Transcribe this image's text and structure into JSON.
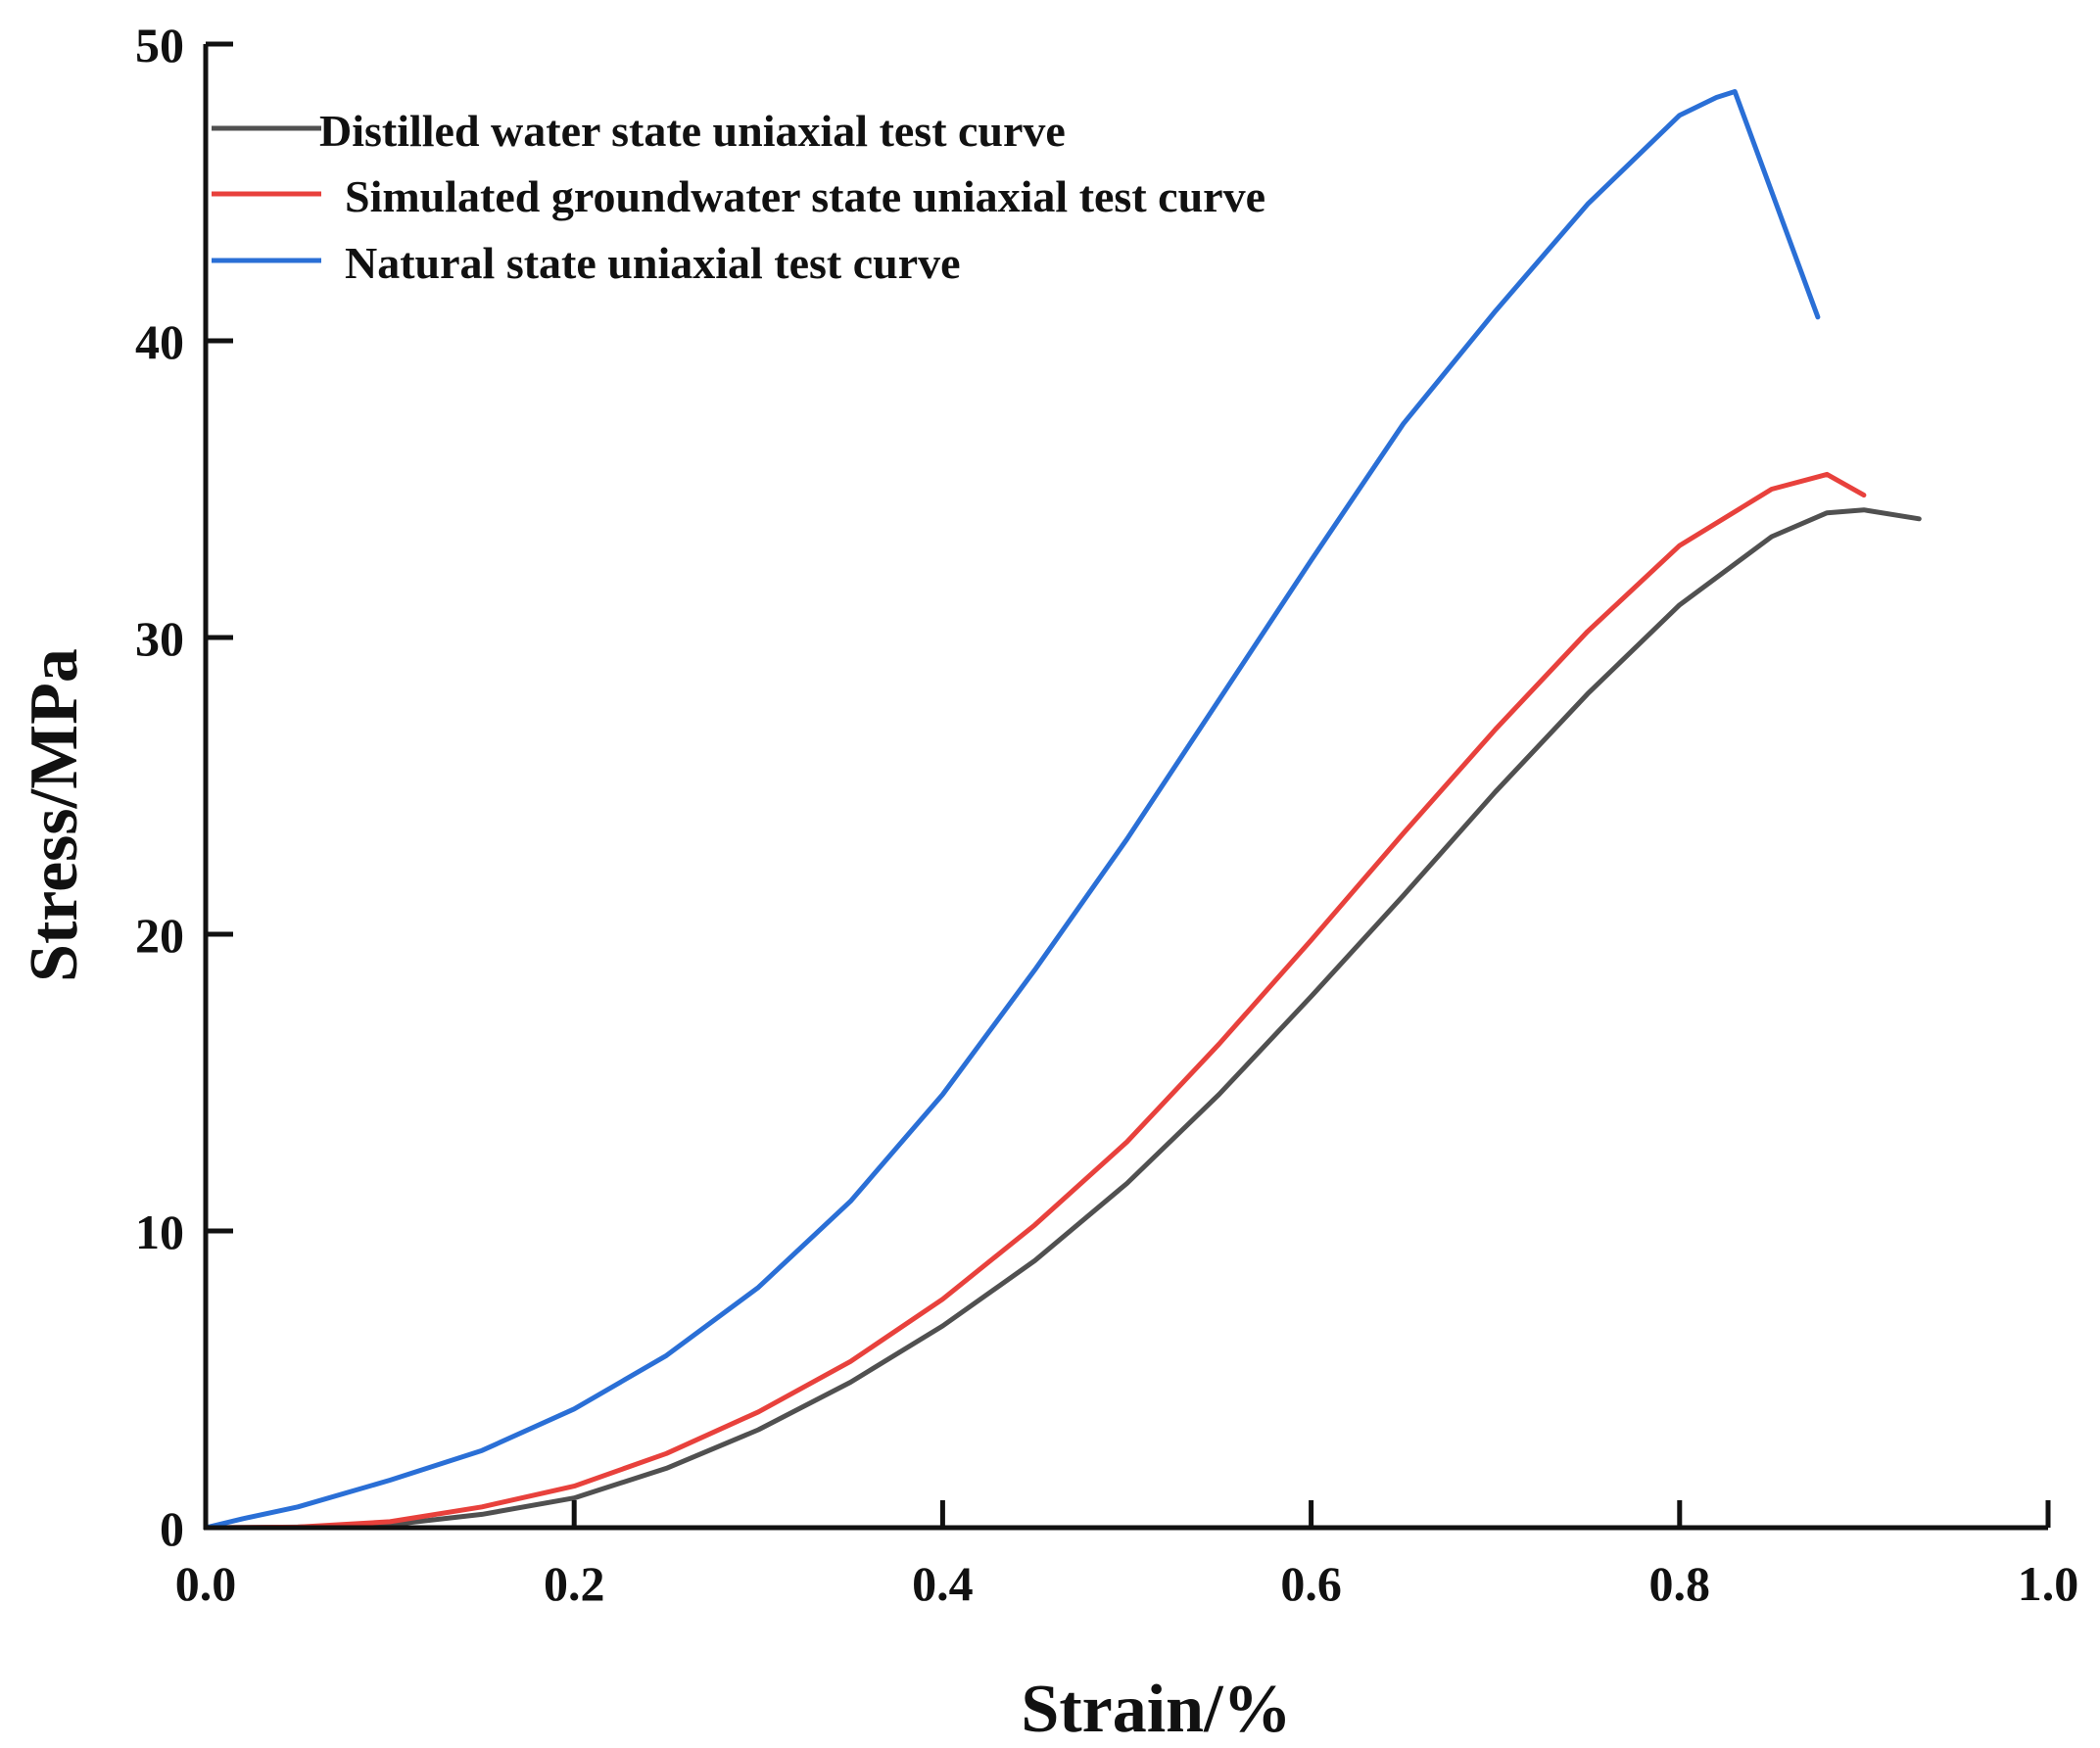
{
  "chart_data": {
    "type": "line",
    "title": "",
    "xlabel": "Strain/%",
    "ylabel": "Stress/MPa",
    "xlim": [
      0.0,
      1.0
    ],
    "ylim": [
      0,
      50
    ],
    "x_ticks": [
      0.0,
      0.2,
      0.4,
      0.6,
      0.8,
      1.0
    ],
    "x_tick_labels": [
      "0.0",
      "0.2",
      "0.4",
      "0.6",
      "0.8",
      "1.0"
    ],
    "y_ticks": [
      0,
      10,
      20,
      30,
      40,
      50
    ],
    "y_tick_labels": [
      "0",
      "10",
      "20",
      "30",
      "40",
      "50"
    ],
    "grid": false,
    "legend_position": "top-left",
    "series": [
      {
        "name": "Distilled water state uniaxial test curve",
        "color": "#505050",
        "points": [
          [
            0.0,
            0
          ],
          [
            0.05,
            0.02
          ],
          [
            0.1,
            0.1
          ],
          [
            0.15,
            0.45
          ],
          [
            0.2,
            1.0
          ],
          [
            0.25,
            2.0
          ],
          [
            0.3,
            3.3
          ],
          [
            0.35,
            4.9
          ],
          [
            0.4,
            6.8
          ],
          [
            0.45,
            9.0
          ],
          [
            0.5,
            11.6
          ],
          [
            0.55,
            14.6
          ],
          [
            0.6,
            17.9
          ],
          [
            0.65,
            21.3
          ],
          [
            0.7,
            24.8
          ],
          [
            0.75,
            28.1
          ],
          [
            0.8,
            31.1
          ],
          [
            0.85,
            33.4
          ],
          [
            0.88,
            34.2
          ],
          [
            0.9,
            34.3
          ],
          [
            0.93,
            34.0
          ]
        ]
      },
      {
        "name": "Simulated groundwater state uniaxial test curve",
        "color": "#e8413c",
        "points": [
          [
            0.0,
            0
          ],
          [
            0.05,
            0.02
          ],
          [
            0.1,
            0.2
          ],
          [
            0.15,
            0.7
          ],
          [
            0.2,
            1.4
          ],
          [
            0.25,
            2.5
          ],
          [
            0.3,
            3.9
          ],
          [
            0.35,
            5.6
          ],
          [
            0.4,
            7.7
          ],
          [
            0.45,
            10.2
          ],
          [
            0.5,
            13.0
          ],
          [
            0.55,
            16.3
          ],
          [
            0.6,
            19.8
          ],
          [
            0.65,
            23.4
          ],
          [
            0.7,
            26.9
          ],
          [
            0.75,
            30.2
          ],
          [
            0.8,
            33.1
          ],
          [
            0.85,
            35.0
          ],
          [
            0.88,
            35.5
          ],
          [
            0.9,
            34.8
          ]
        ]
      },
      {
        "name": "Natural state uniaxial test curve",
        "color": "#2a6fd6",
        "points": [
          [
            0.0,
            0
          ],
          [
            0.02,
            0.3
          ],
          [
            0.05,
            0.7
          ],
          [
            0.1,
            1.6
          ],
          [
            0.15,
            2.6
          ],
          [
            0.2,
            4.0
          ],
          [
            0.25,
            5.8
          ],
          [
            0.3,
            8.1
          ],
          [
            0.35,
            11.0
          ],
          [
            0.4,
            14.6
          ],
          [
            0.45,
            18.8
          ],
          [
            0.5,
            23.2
          ],
          [
            0.55,
            27.9
          ],
          [
            0.6,
            32.6
          ],
          [
            0.65,
            37.2
          ],
          [
            0.7,
            41.0
          ],
          [
            0.75,
            44.6
          ],
          [
            0.8,
            47.6
          ],
          [
            0.82,
            48.2
          ],
          [
            0.83,
            48.4
          ],
          [
            0.875,
            40.8
          ]
        ]
      }
    ]
  }
}
